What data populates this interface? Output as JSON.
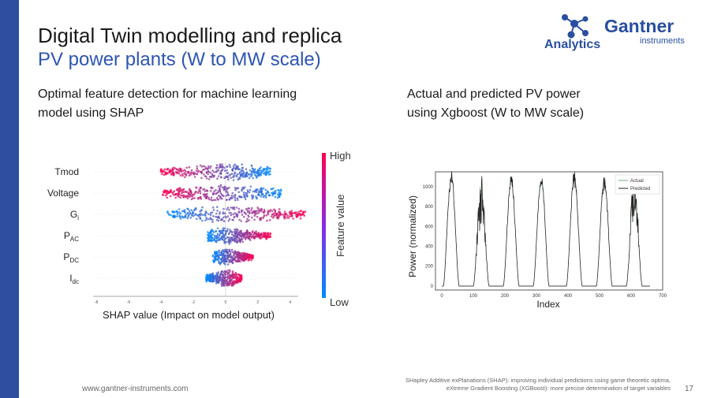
{
  "slide": {
    "title": "Digital Twin modelling and replica",
    "subtitle": "PV power plants (W to MW scale)",
    "left_heading": [
      "Optimal feature detection for machine learning",
      "model using SHAP"
    ],
    "right_heading": [
      "Actual and predicted PV power",
      "using Xgboost (W to MW scale)"
    ],
    "footer_url": "www.gantner-instruments.com",
    "footnotes": [
      "SHapley Additive exPlanations (SHAP): improving individual predictions using game theoretic optima,",
      "eXtreme Gradient Boosting (XGBoost): more precise determination of target variables"
    ],
    "page_number": "17"
  },
  "logo": {
    "analytics": "Analytics",
    "brand": "Gantner",
    "brand_sub": "instruments"
  },
  "colors": {
    "accent_blue": "#2d55b3",
    "sidebar": "#2e4fa0",
    "shap_high": "#ff0052",
    "shap_low": "#008bfb"
  },
  "chart_data": [
    {
      "type": "scatter",
      "title": "",
      "xlabel": "SHAP value (Impact on model output)",
      "ylabel": "",
      "features": [
        {
          "name": "Tmod",
          "sub": "",
          "min": -4.0,
          "max": 2.8,
          "center": 0.0
        },
        {
          "name": "Voltage",
          "sub": "",
          "min": -3.9,
          "max": 3.5,
          "center": 0.0
        },
        {
          "name": "G",
          "sub": "i",
          "min": -3.6,
          "max": 5.0,
          "center": 0.3
        },
        {
          "name": "P",
          "sub": "AC",
          "min": -1.1,
          "max": 2.8,
          "center": 0.0
        },
        {
          "name": "P",
          "sub": "DC",
          "min": -0.8,
          "max": 1.7,
          "center": 0.0
        },
        {
          "name": "I",
          "sub": "dc",
          "min": -1.2,
          "max": 1.0,
          "center": 0.1
        }
      ],
      "x_ticks": [
        "-8",
        "-6",
        "-4",
        "-2",
        "0",
        "2",
        "4"
      ],
      "xlim": [
        -8.2,
        4.5
      ],
      "colorbar": {
        "label": "Feature value",
        "high": "High",
        "low": "Low"
      }
    },
    {
      "type": "line",
      "title": "",
      "xlabel": "Index",
      "ylabel": "Power (normalized)",
      "xlim": [
        -20,
        700
      ],
      "ylim": [
        -40,
        1150
      ],
      "x_ticks": [
        0,
        100,
        200,
        300,
        400,
        500,
        600,
        700
      ],
      "y_ticks": [
        0,
        200,
        400,
        600,
        800,
        1000
      ],
      "legend": [
        "Actual",
        "Predicted"
      ],
      "peaks": [
        {
          "start": 5,
          "end": 55,
          "peak": 1100,
          "center": 28
        },
        {
          "start": 100,
          "end": 150,
          "peak": 850,
          "center": 122
        },
        {
          "start": 195,
          "end": 245,
          "peak": 1060,
          "center": 215
        },
        {
          "start": 290,
          "end": 340,
          "peak": 1080,
          "center": 315
        },
        {
          "start": 395,
          "end": 445,
          "peak": 1080,
          "center": 418
        },
        {
          "start": 490,
          "end": 540,
          "peak": 1060,
          "center": 512
        },
        {
          "start": 585,
          "end": 635,
          "peak": 950,
          "center": 608
        }
      ],
      "series": [
        {
          "name": "Actual",
          "color": "#7aa87a"
        },
        {
          "name": "Predicted",
          "color": "#222222"
        }
      ]
    }
  ]
}
